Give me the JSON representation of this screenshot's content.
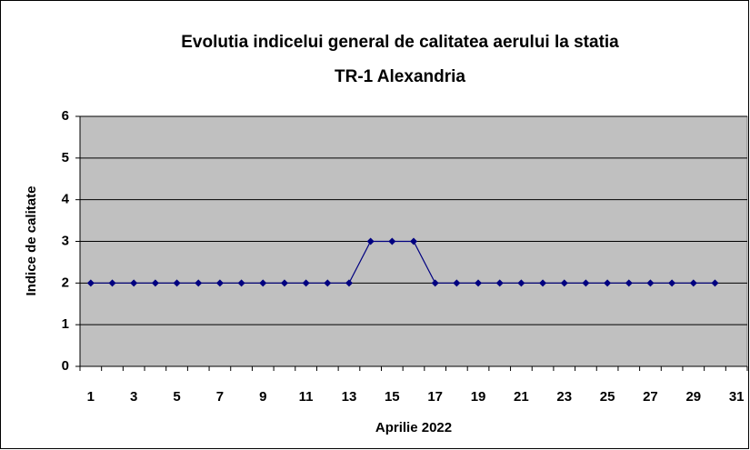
{
  "chart_data": {
    "type": "line",
    "title": [
      "Evolutia indicelui general de calitatea aerului la statia",
      "TR-1 Alexandria"
    ],
    "x_label": "Aprilie 2022",
    "y_label": "Indice de calitate",
    "categories": [
      1,
      null,
      3,
      null,
      5,
      null,
      7,
      null,
      9,
      null,
      11,
      null,
      13,
      null,
      15,
      null,
      17,
      null,
      19,
      null,
      21,
      null,
      23,
      null,
      25,
      null,
      27,
      null,
      29,
      null,
      31
    ],
    "values": [
      2,
      2,
      2,
      2,
      2,
      2,
      2,
      2,
      2,
      2,
      2,
      2,
      2,
      3,
      3,
      3,
      2,
      2,
      2,
      2,
      2,
      2,
      2,
      2,
      2,
      2,
      2,
      2,
      2,
      2,
      null
    ],
    "color": "#000080",
    "plot_background": "#c0c0c0",
    "ylim": [
      0,
      6
    ],
    "yticks": [
      0,
      1,
      2,
      3,
      4,
      5,
      6
    ],
    "grid": true
  }
}
